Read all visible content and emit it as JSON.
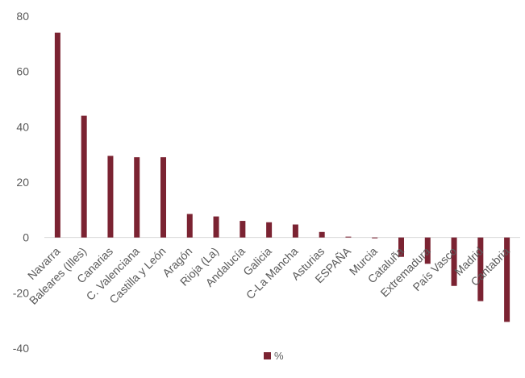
{
  "chart_data": {
    "type": "bar",
    "categories": [
      "Navarra",
      "Baleares (Illes)",
      "Canarias",
      "C. Valenciana",
      "Castilla y León",
      "Aragón",
      "Rioja (La)",
      "Andalucía",
      "Galicia",
      "C-La Mancha",
      "Asturias",
      "ESPAÑA",
      "Murcia",
      "Cataluña",
      "Extremadura",
      "País Vasco",
      "Madrid",
      "Cantabria"
    ],
    "series": [
      {
        "name": "%",
        "values": [
          74,
          44,
          29.5,
          29,
          29,
          8.5,
          7.6,
          6,
          5.5,
          4.7,
          2,
          0.3,
          -0.3,
          -7,
          -9.5,
          -17.5,
          -23,
          -30.5
        ],
        "color": "#7B2332"
      }
    ],
    "title": "",
    "xlabel": "",
    "ylabel": "",
    "ylim": [
      -40,
      80
    ],
    "yticks": [
      "80",
      "60",
      "40",
      "20",
      "0",
      "-20",
      "-40"
    ],
    "grid": false,
    "legend": {
      "position": "bottom",
      "label": "%"
    }
  }
}
